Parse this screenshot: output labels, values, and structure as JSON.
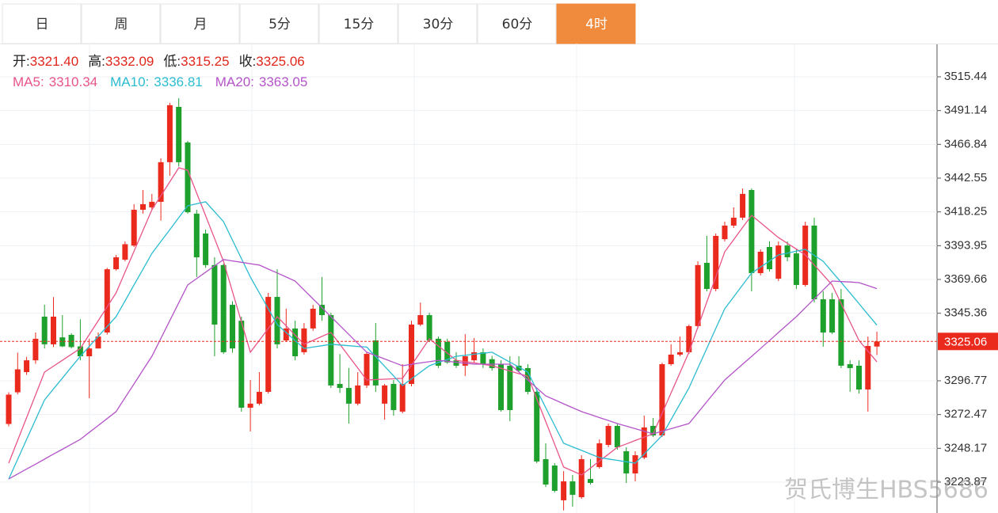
{
  "tabs": [
    "日",
    "周",
    "月",
    "5分",
    "15分",
    "30分",
    "60分",
    "4时"
  ],
  "active_tab": 7,
  "ohlc_legend": [
    {
      "label": "开:",
      "value": "3321.40"
    },
    {
      "label": "高:",
      "value": "3332.09"
    },
    {
      "label": "低:",
      "value": "3315.25"
    },
    {
      "label": "收:",
      "value": "3325.06"
    }
  ],
  "watermark": "贺氏博生HBS5686",
  "chart_data": {
    "type": "candlestick",
    "up_color": "#eb2a1e",
    "down_color": "#1ea02c",
    "ylim": [
      3201.65,
      3539.36
    ],
    "yticks": [
      3223.87,
      3248.17,
      3272.47,
      3296.77,
      3345.36,
      3369.66,
      3393.95,
      3418.25,
      3442.55,
      3466.84,
      3491.14,
      3515.44
    ],
    "grid": true,
    "last_price": {
      "value": 3325.06,
      "label": "3325.06",
      "color": "#eb2a1e"
    },
    "open": [
      3265.7,
      3288.5,
      3303,
      3311.5,
      3342.9,
      3323,
      3328,
      3329.8,
      3321.5,
      3314.4,
      3320,
      3331.5,
      3377,
      3383.9,
      3394,
      3419.8,
      3421.5,
      3425.5,
      3454,
      3493.8,
      3468.2,
      3417,
      3402.7,
      3380,
      3380,
      3351.4,
      3340,
      3277.4,
      3280.3,
      3288.8,
      3357.1,
      3325.8,
      3334.4,
      3317.3,
      3334.4,
      3351.4,
      3344,
      3294.5,
      3291.6,
      3280.3,
      3293.4,
      3325.8,
      3280.3,
      3294.5,
      3274.6,
      3294.5,
      3337.2,
      3344,
      3327,
      3324.7,
      3311.5,
      3307.6,
      3311.5,
      3317.3,
      3312.3,
      3308.7,
      3307.6,
      3307.6,
      3305.9,
      3288.8,
      3240.4,
      3235.8,
      3210.8,
      3224.4,
      3213,
      3226.1,
      3234.7,
      3250.6,
      3264.3,
      3246.1,
      3230.1,
      3241.5,
      3264.3,
      3257.4,
      3308.7,
      3315.6,
      3317.3,
      3336.1,
      3381.6,
      3362.8,
      3398.6,
      3408.4,
      3414.1,
      3434,
      3374.2,
      3393,
      3370.2,
      3394.1,
      3388.4,
      3365.7,
      3408.4,
      3355.4,
      3355.4,
      3355.4,
      3308.7,
      3307.6,
      3290.5,
      3321.4
    ],
    "high": [
      3288.5,
      3317,
      3314,
      3331.5,
      3351.5,
      3357,
      3344,
      3331,
      3341,
      3327,
      3331.5,
      3378,
      3387.3,
      3397,
      3423.8,
      3434,
      3431.2,
      3456.8,
      3496.7,
      3500,
      3469.3,
      3419.8,
      3405.5,
      3385.6,
      3381,
      3354,
      3342.9,
      3297.3,
      3303,
      3360,
      3377,
      3348.6,
      3340,
      3338.3,
      3351.4,
      3371.4,
      3345.7,
      3316,
      3306,
      3303,
      3317.3,
      3338.3,
      3294.5,
      3297.3,
      3308.7,
      3340,
      3353,
      3345.7,
      3328.6,
      3327,
      3317.3,
      3330.3,
      3327.5,
      3320,
      3314.7,
      3311.5,
      3314.4,
      3314.4,
      3308.7,
      3290,
      3251.8,
      3237.5,
      3231.8,
      3229,
      3243.2,
      3240.4,
      3254.6,
      3266,
      3266,
      3248.9,
      3246.1,
      3271.7,
      3270,
      3309.8,
      3323,
      3328.6,
      3337.2,
      3382.7,
      3401,
      3402.7,
      3411.2,
      3421.5,
      3435.1,
      3435.1,
      3391.3,
      3397,
      3397,
      3397,
      3391.3,
      3411.2,
      3414.1,
      3361.1,
      3360,
      3362.8,
      3311.5,
      3311.5,
      3328.6,
      3332.09
    ],
    "low": [
      3264,
      3287,
      3301,
      3309,
      3320,
      3321,
      3321,
      3320,
      3311.5,
      3284.2,
      3320,
      3330,
      3376,
      3382.7,
      3393,
      3417,
      3419.8,
      3412,
      3444.3,
      3451,
      3417,
      3371.4,
      3378,
      3314.4,
      3316,
      3317,
      3274.5,
      3260.3,
      3279,
      3287.6,
      3320,
      3324.7,
      3311.5,
      3315.6,
      3332.7,
      3340,
      3291.6,
      3288,
      3266,
      3279,
      3291.6,
      3288.8,
      3268.8,
      3271.7,
      3273.4,
      3292.8,
      3336,
      3324.7,
      3306,
      3309,
      3306,
      3300.2,
      3310,
      3306,
      3304.1,
      3274.6,
      3267.7,
      3303,
      3287,
      3237.5,
      3220.4,
      3216.4,
      3203.5,
      3206.2,
      3211.9,
      3222.1,
      3233.5,
      3249,
      3247.2,
      3223.3,
      3224.4,
      3240.4,
      3256.3,
      3256.3,
      3307.6,
      3314.4,
      3316.1,
      3334.4,
      3361.1,
      3361.1,
      3397,
      3406.7,
      3412.4,
      3361.1,
      3372.5,
      3375.4,
      3368.5,
      3382.7,
      3362.8,
      3364.5,
      3353.1,
      3321.3,
      3330.3,
      3305.9,
      3288.8,
      3287.6,
      3274.6,
      3315.25
    ],
    "close": [
      3286.8,
      3305,
      3311.5,
      3327,
      3323,
      3342.9,
      3321.5,
      3321,
      3314.4,
      3320,
      3328.6,
      3377,
      3385.6,
      3395,
      3419.8,
      3423.8,
      3425.5,
      3454,
      3495,
      3454,
      3418,
      3385.6,
      3380,
      3337.2,
      3317.3,
      3320,
      3277.4,
      3280.3,
      3288.8,
      3357.1,
      3323,
      3334.4,
      3314.4,
      3334.4,
      3348.6,
      3344,
      3293.4,
      3291.6,
      3280.3,
      3293.4,
      3316.1,
      3293.4,
      3293.4,
      3275.7,
      3294.5,
      3337.2,
      3344,
      3325.8,
      3307.6,
      3310,
      3307.6,
      3314.4,
      3317.3,
      3308.7,
      3305.9,
      3275.7,
      3275.7,
      3304.1,
      3288.8,
      3238.7,
      3222.1,
      3217.6,
      3224.4,
      3214.7,
      3240.4,
      3223.3,
      3251.8,
      3264.3,
      3248.9,
      3230.1,
      3243.2,
      3263.2,
      3257.4,
      3308.7,
      3315.6,
      3317.3,
      3336.1,
      3380,
      3362.8,
      3401,
      3408.4,
      3414.1,
      3431.2,
      3374.2,
      3389.6,
      3377,
      3394.1,
      3385.6,
      3365.7,
      3408.4,
      3355.4,
      3331.5,
      3331.5,
      3307.6,
      3305.9,
      3290.5,
      3321.8,
      3325.06
    ],
    "series": [
      {
        "name": "MA5:",
        "color": "#e8548a",
        "last_label": "3310.34",
        "values": [
          3237.5,
          3253.9,
          3270.3,
          3286.6,
          3303,
          3307.3,
          3311.5,
          3315.8,
          3320,
          3330,
          3340,
          3350,
          3360,
          3375,
          3389.9,
          3404.9,
          3419.8,
          3429.9,
          3439.9,
          3450,
          3448.2,
          3431.8,
          3415.5,
          3399.1,
          3382.7,
          3360.9,
          3339.1,
          3317.3,
          3325.8,
          3334.4,
          3342.9,
          3336.3,
          3329.6,
          3323,
          3325.8,
          3328.7,
          3331.5,
          3323,
          3314.4,
          3305.9,
          3297.3,
          3297.6,
          3297.9,
          3298.2,
          3298.5,
          3308,
          3317.5,
          3327,
          3321.8,
          3316.7,
          3311.5,
          3310.5,
          3309.6,
          3308.6,
          3307.6,
          3305.7,
          3303.8,
          3301.9,
          3300,
          3283.7,
          3267.4,
          3251,
          3234.7,
          3231.9,
          3229,
          3234,
          3239,
          3243.9,
          3248.9,
          3251.3,
          3253.8,
          3256.2,
          3258.6,
          3273.3,
          3288,
          3302.6,
          3317.3,
          3335.4,
          3353.5,
          3371.5,
          3389.6,
          3398.3,
          3407.1,
          3415.8,
          3410.5,
          3405.1,
          3399.8,
          3395.6,
          3391.5,
          3387.3,
          3380.1,
          3372.9,
          3365.7,
          3352.4,
          3339.1,
          3325.8,
          3318.1,
          3310.34
        ]
      },
      {
        "name": "MA10:",
        "color": "#2bbcd0",
        "last_label": "3336.81",
        "values": [
          3226.1,
          3240.3,
          3254.6,
          3268.8,
          3283,
          3290.9,
          3298.7,
          3306.6,
          3314.4,
          3321.5,
          3328.7,
          3335.8,
          3342.9,
          3354.3,
          3365.7,
          3377,
          3388.4,
          3397,
          3405.5,
          3414.1,
          3422.6,
          3424.1,
          3425.5,
          3418.4,
          3411.2,
          3397.9,
          3384.7,
          3371.4,
          3360,
          3348.6,
          3337.2,
          3331.5,
          3325.7,
          3320,
          3321,
          3322,
          3323,
          3322.5,
          3322,
          3321.5,
          3321,
          3314.1,
          3307.2,
          3300.3,
          3293.4,
          3298.1,
          3302.9,
          3307.6,
          3309.9,
          3312.1,
          3314.4,
          3315.1,
          3315.9,
          3316.6,
          3317.3,
          3313.7,
          3310.2,
          3306.6,
          3303,
          3290.2,
          3277.4,
          3264.6,
          3251.8,
          3249.2,
          3246.7,
          3244.1,
          3241.5,
          3240.5,
          3239.5,
          3238.5,
          3237.5,
          3244.1,
          3250.8,
          3257.4,
          3268.8,
          3280.2,
          3291.6,
          3305.9,
          3320.1,
          3334.4,
          3348.6,
          3357.1,
          3365.7,
          3374.2,
          3378.6,
          3382.9,
          3387.3,
          3388.6,
          3390,
          3391.3,
          3387,
          3382.7,
          3375.1,
          3367.6,
          3360,
          3352.3,
          3344.5,
          3336.81
        ]
      },
      {
        "name": "MA20:",
        "color": "#b454c8",
        "last_label": "3363.05",
        "values": [
          3226.1,
          3229.7,
          3233.3,
          3236.8,
          3240.4,
          3244,
          3247.5,
          3251.1,
          3254.6,
          3259.6,
          3264.6,
          3269.6,
          3274.6,
          3284.6,
          3294.5,
          3304.5,
          3314.4,
          3327.2,
          3340.1,
          3352.9,
          3365.7,
          3370.3,
          3374.9,
          3379.4,
          3384,
          3383,
          3382,
          3381,
          3380,
          3377.1,
          3374.3,
          3371.4,
          3368.5,
          3362.1,
          3355.7,
          3349.3,
          3342.9,
          3336.5,
          3330.1,
          3323.7,
          3317.3,
          3314.9,
          3312.5,
          3310,
          3307.6,
          3308.6,
          3309.6,
          3310.5,
          3311.5,
          3310.8,
          3310.1,
          3309.4,
          3308.7,
          3308.7,
          3308.7,
          3308.7,
          3308.7,
          3303,
          3297.3,
          3291.6,
          3285.9,
          3283.1,
          3280.2,
          3277.4,
          3274.6,
          3272.5,
          3270.3,
          3268.2,
          3266,
          3264.2,
          3262.3,
          3260.5,
          3258.6,
          3260.5,
          3262.3,
          3264.2,
          3266,
          3273.8,
          3281.7,
          3289.5,
          3297.3,
          3303,
          3308.7,
          3314.3,
          3320,
          3325.7,
          3331.5,
          3337.2,
          3342.9,
          3349.3,
          3355.7,
          3362.1,
          3368.5,
          3368.1,
          3367.8,
          3367.4,
          3365.2,
          3363.05
        ]
      }
    ]
  }
}
